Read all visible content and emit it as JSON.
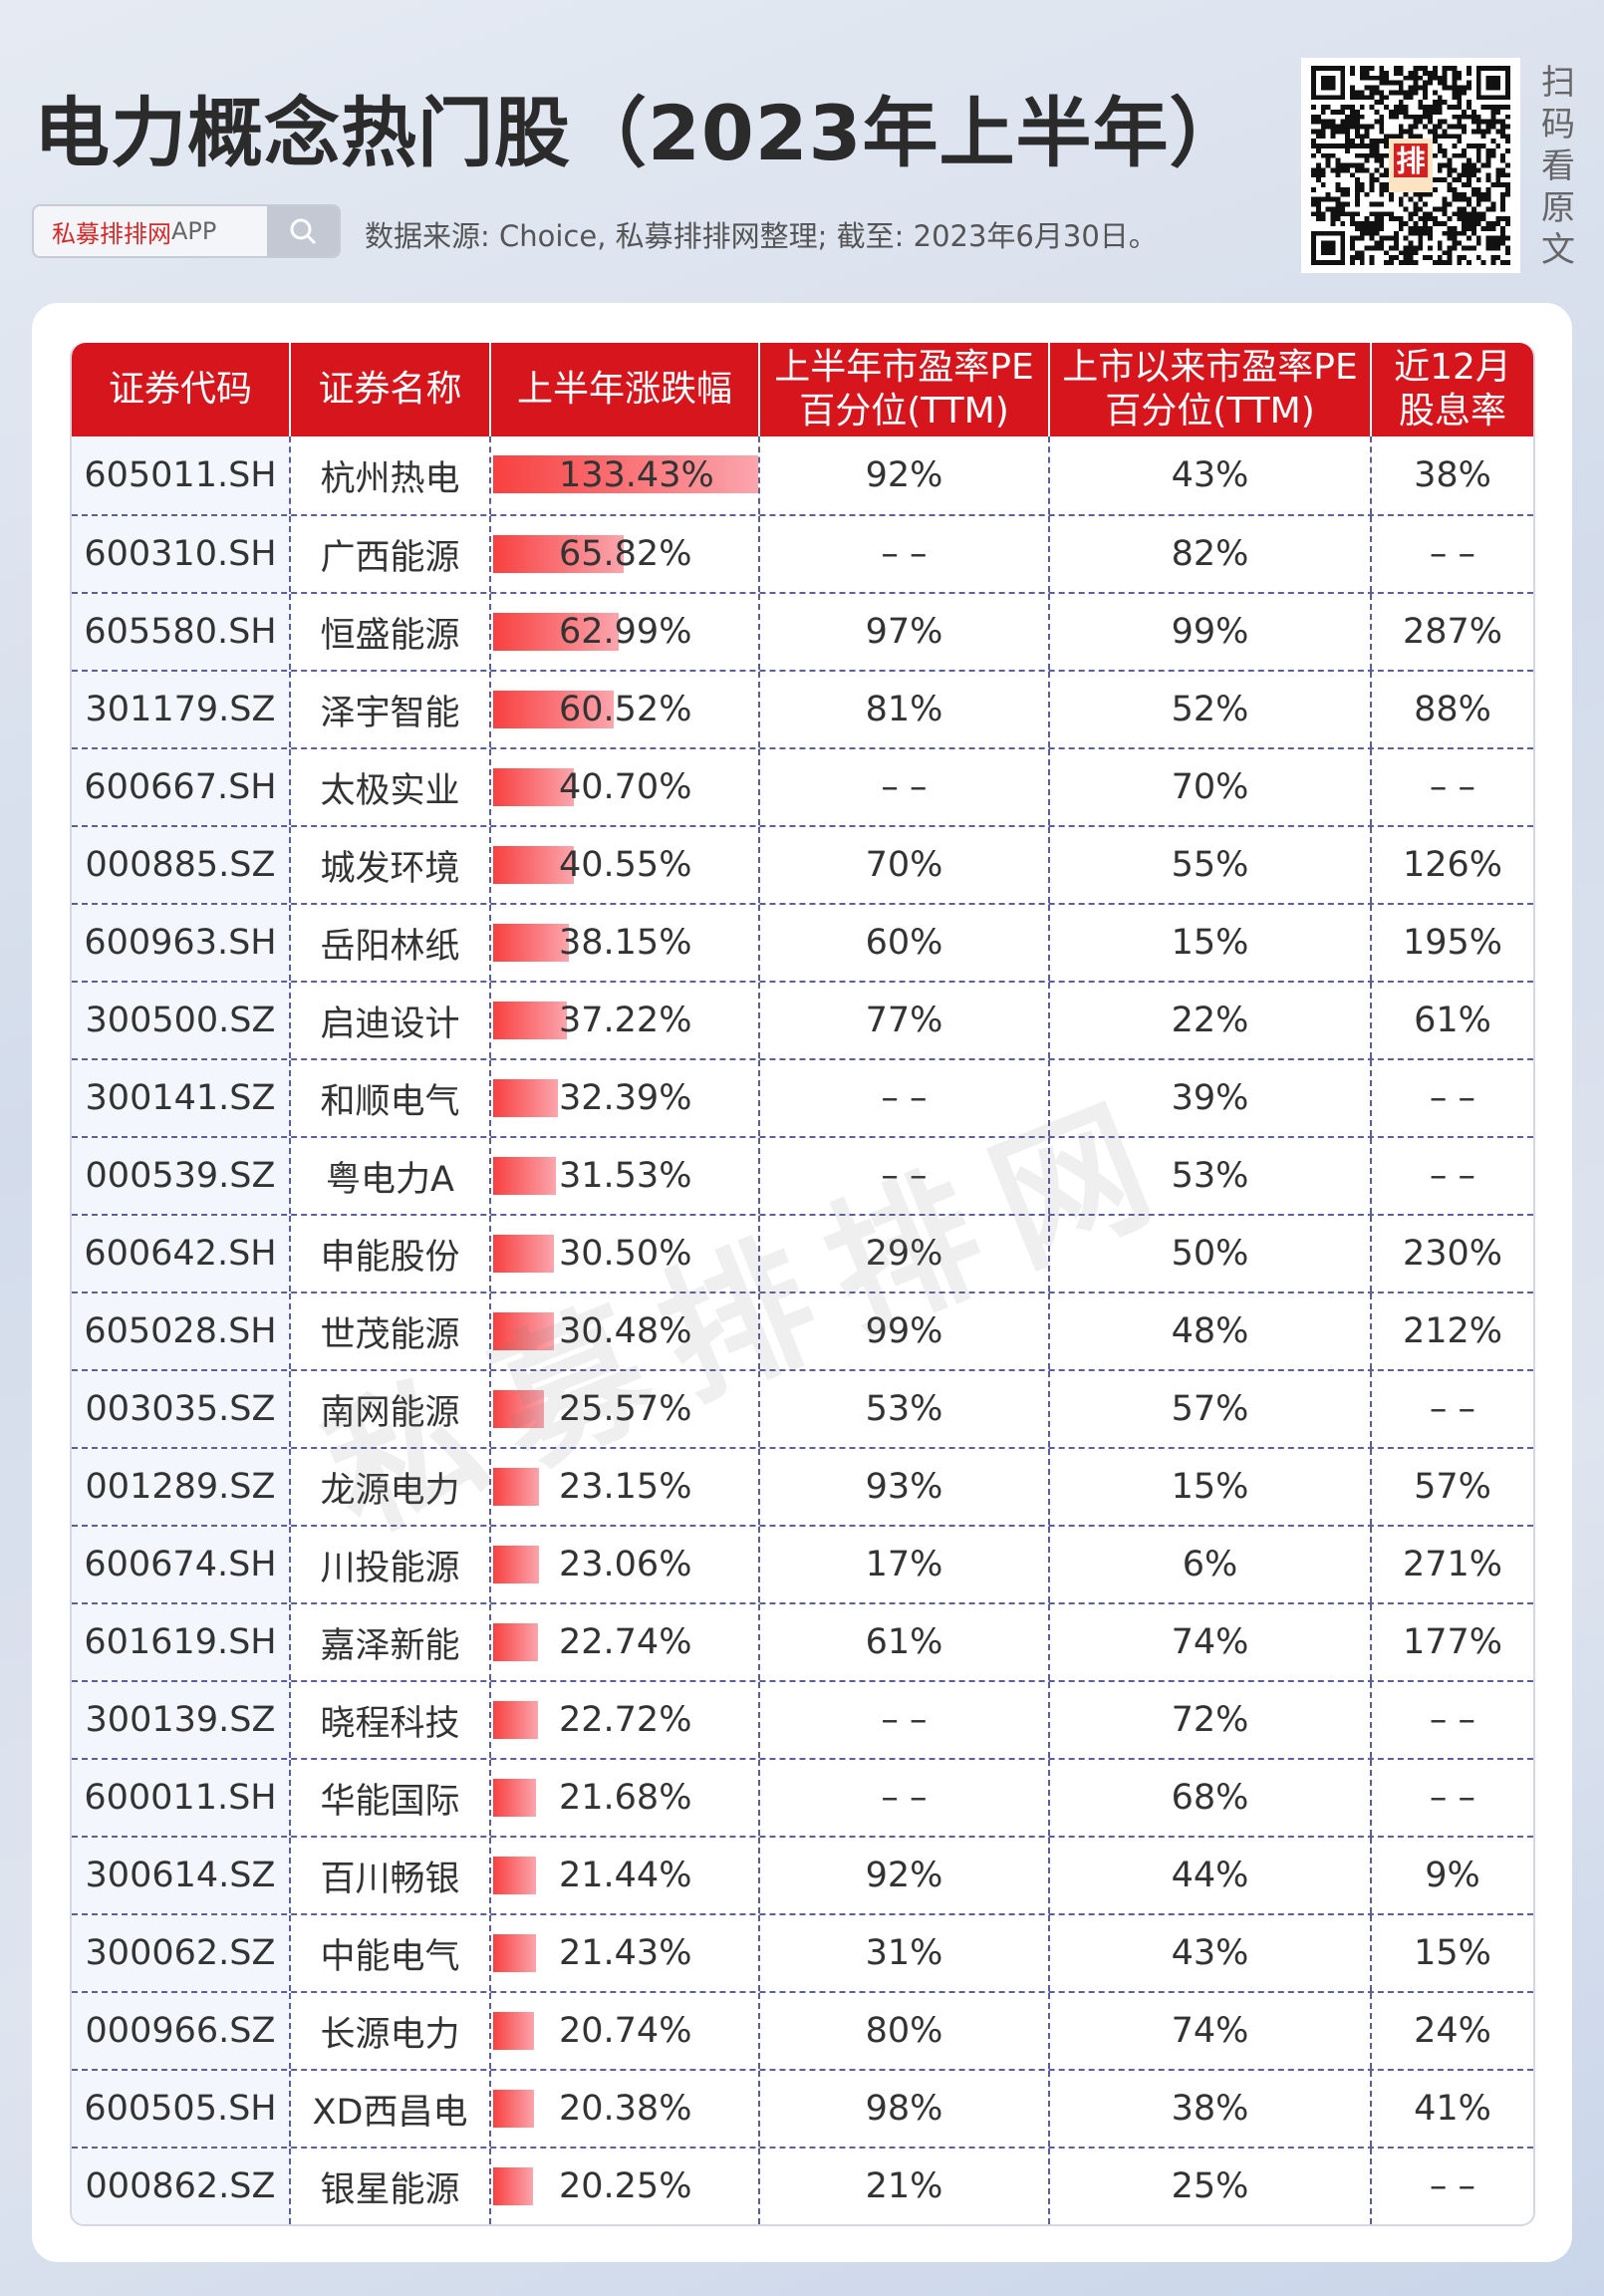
{
  "header": {
    "title": "电力概念热门股（2023年上半年）",
    "search_brand": "私募排排网",
    "search_brand_suffix": "APP",
    "source": "数据来源: Choice, 私募排排网整理; 截至: 2023年6月30日。",
    "qr_caption": "扫码看原文",
    "qr_logo_text": "排"
  },
  "watermark": "私募排排网",
  "colors": {
    "header_red": "#d6151d",
    "bar_start": "#f84040",
    "bar_end": "#fba5ad",
    "grid": "#5b5f9c"
  },
  "table": {
    "columns": [
      "证券代码",
      "证券名称",
      "上半年涨跌幅",
      "上半年市盈率PE\n百分位(TTM)",
      "上市以来市盈率PE\n百分位(TTM)",
      "近12月\n股息率"
    ],
    "rows": [
      [
        "605011.SH",
        "杭州热电",
        133.43,
        "92%",
        "43%",
        "38%"
      ],
      [
        "600310.SH",
        "广西能源",
        65.82,
        "--",
        "82%",
        "--"
      ],
      [
        "605580.SH",
        "恒盛能源",
        62.99,
        "97%",
        "99%",
        "287%"
      ],
      [
        "301179.SZ",
        "泽宇智能",
        60.52,
        "81%",
        "52%",
        "88%"
      ],
      [
        "600667.SH",
        "太极实业",
        40.7,
        "--",
        "70%",
        "--"
      ],
      [
        "000885.SZ",
        "城发环境",
        40.55,
        "70%",
        "55%",
        "126%"
      ],
      [
        "600963.SH",
        "岳阳林纸",
        38.15,
        "60%",
        "15%",
        "195%"
      ],
      [
        "300500.SZ",
        "启迪设计",
        37.22,
        "77%",
        "22%",
        "61%"
      ],
      [
        "300141.SZ",
        "和顺电气",
        32.39,
        "--",
        "39%",
        "--"
      ],
      [
        "000539.SZ",
        "粤电力A",
        31.53,
        "--",
        "53%",
        "--"
      ],
      [
        "600642.SH",
        "申能股份",
        30.5,
        "29%",
        "50%",
        "230%"
      ],
      [
        "605028.SH",
        "世茂能源",
        30.48,
        "99%",
        "48%",
        "212%"
      ],
      [
        "003035.SZ",
        "南网能源",
        25.57,
        "53%",
        "57%",
        "--"
      ],
      [
        "001289.SZ",
        "龙源电力",
        23.15,
        "93%",
        "15%",
        "57%"
      ],
      [
        "600674.SH",
        "川投能源",
        23.06,
        "17%",
        "6%",
        "271%"
      ],
      [
        "601619.SH",
        "嘉泽新能",
        22.74,
        "61%",
        "74%",
        "177%"
      ],
      [
        "300139.SZ",
        "晓程科技",
        22.72,
        "--",
        "72%",
        "--"
      ],
      [
        "600011.SH",
        "华能国际",
        21.68,
        "--",
        "68%",
        "--"
      ],
      [
        "300614.SZ",
        "百川畅银",
        21.44,
        "92%",
        "44%",
        "9%"
      ],
      [
        "300062.SZ",
        "中能电气",
        21.43,
        "31%",
        "43%",
        "15%"
      ],
      [
        "000966.SZ",
        "长源电力",
        20.74,
        "80%",
        "74%",
        "24%"
      ],
      [
        "600505.SH",
        "XD西昌电",
        20.38,
        "98%",
        "38%",
        "41%"
      ],
      [
        "000862.SZ",
        "银星能源",
        20.25,
        "21%",
        "25%",
        "--"
      ]
    ]
  }
}
